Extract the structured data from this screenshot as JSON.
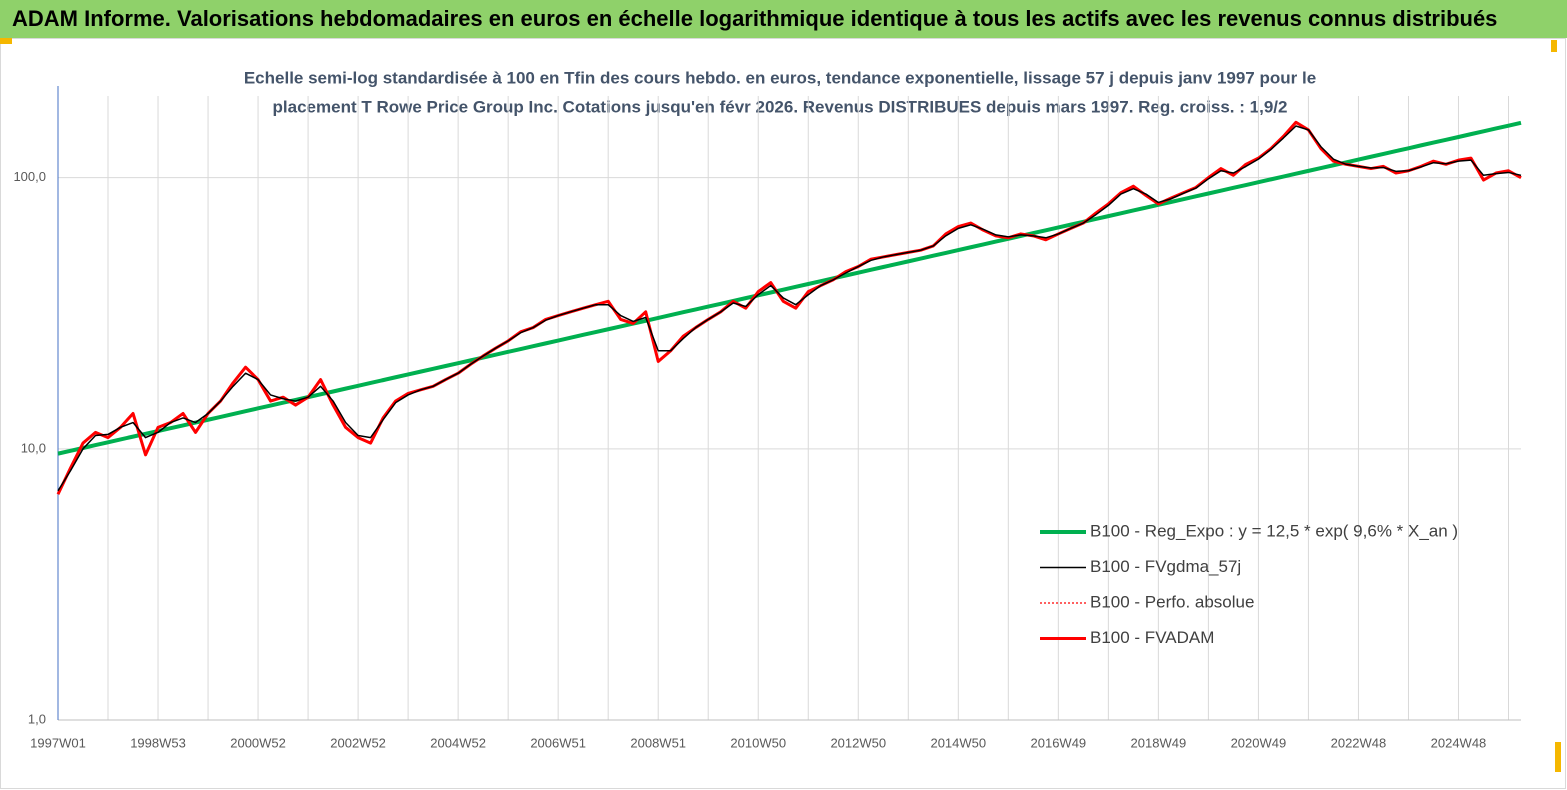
{
  "chart_data": {
    "type": "line",
    "title": "ADAM Informe. Valorisations hebdomadaires en euros en échelle logarithmique identique à tous les actifs avec les revenus connus distribués",
    "subtitle": [
      "Echelle semi-log standardisée à 100 en Tfin des cours hebdo. en euros, tendance exponentielle, lissage 57 j depuis janv 1997 pour le",
      "placement T Rowe Price Group Inc. Cotations jusqu'en févr 2026. Revenus DISTRIBUES depuis mars 1997. Reg. croiss. : 1,9/2"
    ],
    "log_scale": true,
    "grid": true,
    "legend": "bottom right",
    "ylim": [
      1,
      200
    ],
    "yticks": [
      {
        "value": 1,
        "label": "1,0"
      },
      {
        "value": 10,
        "label": "10,0"
      },
      {
        "value": 100,
        "label": "100,0"
      }
    ],
    "categories": [
      "1997W01",
      null,
      null,
      null,
      null,
      null,
      null,
      null,
      "1998W53",
      null,
      null,
      null,
      null,
      null,
      null,
      null,
      "2000W52",
      null,
      null,
      null,
      null,
      null,
      null,
      null,
      "2002W52",
      null,
      null,
      null,
      null,
      null,
      null,
      null,
      "2004W52",
      null,
      null,
      null,
      null,
      null,
      null,
      null,
      "2006W51",
      null,
      null,
      null,
      null,
      null,
      null,
      null,
      "2008W51",
      null,
      null,
      null,
      null,
      null,
      null,
      null,
      "2010W50",
      null,
      null,
      null,
      null,
      null,
      null,
      null,
      "2012W50",
      null,
      null,
      null,
      null,
      null,
      null,
      null,
      "2014W50",
      null,
      null,
      null,
      null,
      null,
      null,
      null,
      "2016W49",
      null,
      null,
      null,
      null,
      null,
      null,
      null,
      "2018W49",
      null,
      null,
      null,
      null,
      null,
      null,
      null,
      "2020W49",
      null,
      null,
      null,
      null,
      null,
      null,
      null,
      "2022W48",
      null,
      null,
      null,
      null,
      null,
      null,
      null,
      "2024W48",
      null,
      null,
      null,
      null,
      null
    ],
    "series": [
      {
        "name": "B100 - Reg_Expo : y = 12,5 *  exp( 9,6% *  X_an )",
        "color": "#00b050",
        "width": 4,
        "values": [
          9.6,
          9.83,
          10.07,
          10.32,
          10.57,
          10.83,
          11.09,
          11.36,
          11.63,
          11.91,
          12.2,
          12.5,
          12.8,
          13.11,
          13.43,
          13.76,
          14.1,
          14.44,
          14.79,
          15.15,
          15.51,
          15.89,
          16.27,
          16.67,
          17.08,
          17.49,
          17.92,
          18.36,
          18.8,
          19.26,
          19.72,
          20.2,
          20.69,
          21.19,
          21.71,
          22.24,
          22.78,
          23.33,
          23.9,
          24.48,
          25.08,
          25.69,
          26.32,
          26.95,
          27.6,
          28.27,
          28.96,
          29.66,
          30.39,
          31.13,
          31.89,
          32.66,
          33.45,
          34.26,
          35.1,
          35.95,
          36.82,
          37.71,
          38.63,
          39.57,
          40.53,
          41.51,
          42.52,
          43.56,
          44.62,
          45.7,
          46.82,
          47.95,
          49.11,
          50.3,
          51.53,
          52.78,
          54.06,
          55.37,
          56.72,
          58.1,
          59.51,
          60.95,
          62.44,
          63.95,
          65.51,
          67.1,
          68.73,
          70.4,
          72.12,
          73.87,
          75.67,
          77.51,
          79.39,
          81.32,
          83.3,
          85.32,
          87.39,
          89.51,
          91.69,
          93.92,
          96.19,
          98.53,
          100.9,
          103.4,
          105.9,
          108.5,
          111.1,
          113.8,
          116.6,
          119.4,
          122.3,
          125.3,
          128.3,
          131.5,
          134.7,
          137.9,
          141.2,
          144.7,
          148.2,
          151.8,
          155.5,
          159.3
        ]
      },
      {
        "name": "B100 - FVgdma_57j",
        "color": "#000000",
        "width": 1.5,
        "values": [
          7.0,
          8.3,
          10.0,
          11.2,
          11.3,
          12.0,
          12.5,
          11.0,
          11.5,
          12.5,
          13.0,
          12.5,
          13.5,
          15,
          17,
          19,
          18,
          15.8,
          15.3,
          15,
          15.5,
          17,
          15,
          12.5,
          11.2,
          11,
          12.8,
          14.8,
          15.8,
          16.5,
          17,
          18,
          19,
          20.5,
          22,
          23.5,
          25,
          26.8,
          28,
          29.8,
          31,
          32,
          33,
          34,
          34,
          31,
          29.5,
          30.5,
          23,
          23,
          25.5,
          28,
          30,
          32,
          34.5,
          33.5,
          37,
          40,
          36,
          34,
          37,
          40,
          42,
          44.5,
          47,
          49.5,
          51,
          52,
          53,
          54,
          56,
          61,
          65,
          67,
          64.5,
          61.5,
          60.5,
          61.5,
          61,
          60,
          62,
          65,
          68,
          73,
          79,
          87,
          91,
          87,
          81,
          83.5,
          87.5,
          91.5,
          99,
          106,
          104,
          110,
          117,
          127,
          140,
          155,
          150,
          130,
          117,
          112,
          110,
          108.5,
          109,
          105.5,
          106,
          109.5,
          113.5,
          112.5,
          115,
          116,
          102,
          103.5,
          104.5,
          102
        ]
      },
      {
        "name": "B100 - Perfo. absolue",
        "color": "#ff0000",
        "width": 1.2,
        "dash": true,
        "values": [
          6.8,
          8.5,
          10.5,
          11.5,
          11,
          12,
          13.5,
          9.5,
          12,
          12.5,
          13.5,
          11.5,
          13.5,
          15,
          17.5,
          20,
          18,
          15,
          15.5,
          14.5,
          15.5,
          18,
          14.5,
          12,
          11,
          10.5,
          13,
          15,
          16,
          16.5,
          17,
          18,
          19,
          20.5,
          22,
          23.5,
          25,
          27,
          28,
          30,
          31,
          32,
          33,
          34,
          35,
          30,
          29,
          32,
          21,
          23,
          26,
          28,
          30,
          32,
          35,
          33,
          38,
          41,
          35,
          33,
          38,
          40,
          42,
          45,
          47,
          50,
          51,
          52,
          53,
          54,
          56,
          62,
          66,
          68,
          64,
          61,
          60,
          62,
          61,
          59,
          62,
          65,
          68,
          74,
          80,
          88,
          93,
          86,
          80,
          84,
          88,
          92,
          100,
          108,
          102,
          112,
          118,
          128,
          142,
          160,
          150,
          128,
          115,
          112,
          110,
          108,
          110,
          104,
          106,
          110,
          115,
          112,
          116,
          118,
          98,
          104,
          106,
          100
        ]
      },
      {
        "name": "B100 - FVADAM",
        "color": "#ff0000",
        "width": 3,
        "values": [
          6.8,
          8.5,
          10.5,
          11.5,
          11,
          12,
          13.5,
          9.5,
          12,
          12.5,
          13.5,
          11.5,
          13.5,
          15,
          17.5,
          20,
          18,
          15,
          15.5,
          14.5,
          15.5,
          18,
          14.5,
          12,
          11,
          10.5,
          13,
          15,
          16,
          16.5,
          17,
          18,
          19,
          20.5,
          22,
          23.5,
          25,
          27,
          28,
          30,
          31,
          32,
          33,
          34,
          35,
          30,
          29,
          32,
          21,
          23,
          26,
          28,
          30,
          32,
          35,
          33,
          38,
          41,
          35,
          33,
          38,
          40,
          42,
          45,
          47,
          50,
          51,
          52,
          53,
          54,
          56,
          62,
          66,
          68,
          64,
          61,
          60,
          62,
          61,
          59,
          62,
          65,
          68,
          74,
          80,
          88,
          93,
          86,
          80,
          84,
          88,
          92,
          100,
          108,
          102,
          112,
          118,
          128,
          142,
          160,
          150,
          128,
          115,
          112,
          110,
          108,
          110,
          104,
          106,
          110,
          115,
          112,
          116,
          118,
          98,
          104,
          106,
          100
        ]
      }
    ]
  }
}
